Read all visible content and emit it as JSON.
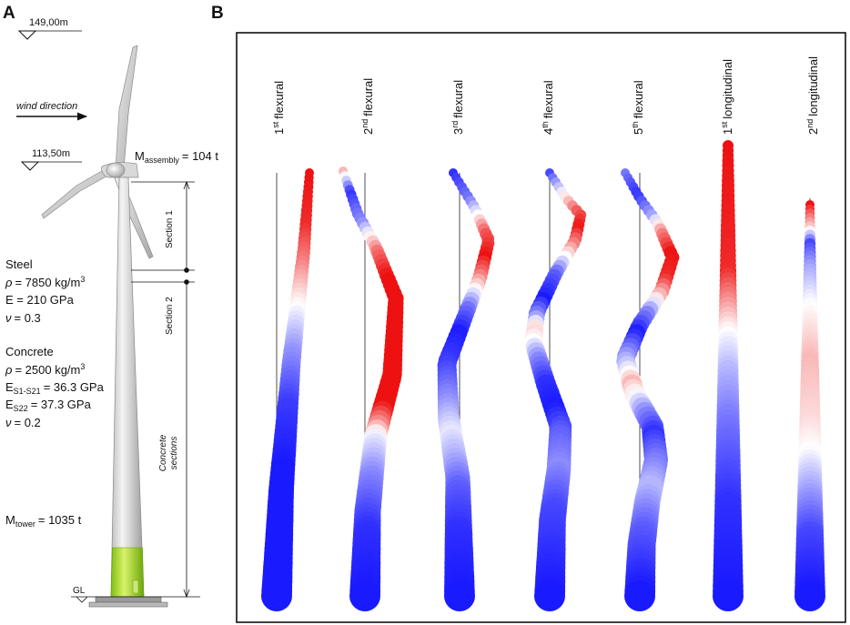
{
  "panels": {
    "a_label": "A",
    "b_label": "B"
  },
  "turbine": {
    "top_level": "149,00m",
    "hub_level": "113,50m",
    "wind_direction": "wind direction",
    "assembly_mass": {
      "symbol": "M",
      "sub": "assembly",
      "value": "= 104 t"
    },
    "section1": "Section 1",
    "section2": "Section 2",
    "concrete_sections": [
      "Concrete",
      "sections"
    ],
    "ground_level": "GL",
    "steel": {
      "title": "Steel",
      "rho": {
        "symbol": "ρ",
        "value": "= 7850 kg/m",
        "sup": "3"
      },
      "E": "E = 210 GPa",
      "nu": {
        "symbol": "ν",
        "value": "= 0.3"
      }
    },
    "concrete": {
      "title": "Concrete",
      "rho": {
        "symbol": "ρ",
        "value": "= 2500 kg/m",
        "sup": "3"
      },
      "E1": {
        "symbol": "E",
        "sub": "S1-S21",
        "value": "= 36.3 GPa"
      },
      "E2": {
        "symbol": "E",
        "sub": "S22",
        "value": "= 37.3 GPa"
      },
      "nu": {
        "symbol": "ν",
        "value": "= 0.2"
      }
    },
    "tower_mass": {
      "symbol": "M",
      "sub": "tower",
      "value": "= 1035 t"
    }
  },
  "modes": [
    {
      "num": "1",
      "sup": "st",
      "name": "flexural"
    },
    {
      "num": "2",
      "sup": "nd",
      "name": "flexural"
    },
    {
      "num": "3",
      "sup": "rd",
      "name": "flexural"
    },
    {
      "num": "4",
      "sup": "th",
      "name": "flexural"
    },
    {
      "num": "5",
      "sup": "th",
      "name": "flexural"
    },
    {
      "num": "1",
      "sup": "st",
      "name": "longitudinal"
    },
    {
      "num": "2",
      "sup": "nd",
      "name": "longitudinal"
    }
  ],
  "colors": {
    "blue": "#1a1aff",
    "red": "#ee1111",
    "white": "#ffffff",
    "tower_concrete_green": "#9fd82a",
    "tower_grey": "#d8d8d8"
  }
}
